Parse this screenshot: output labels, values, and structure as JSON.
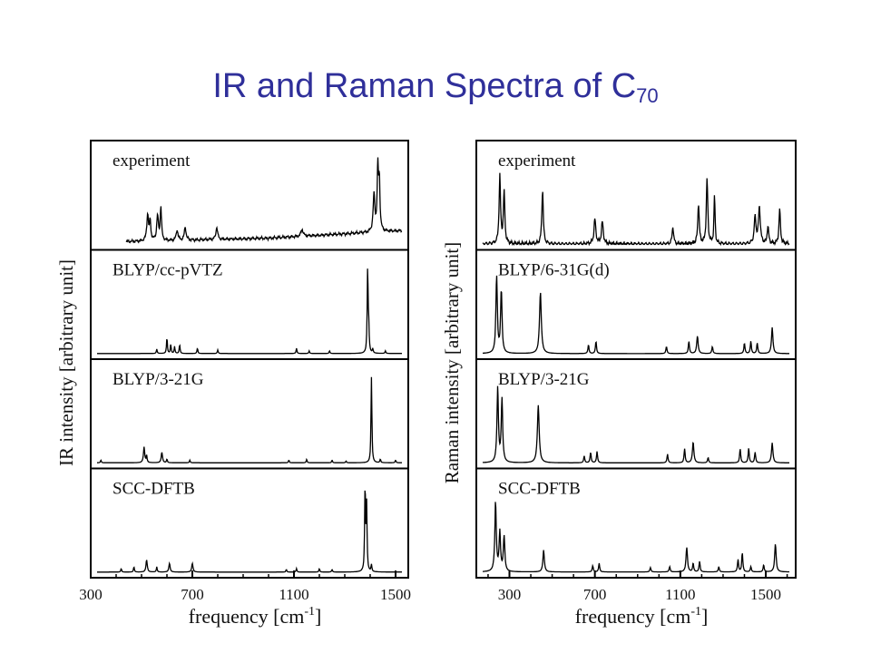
{
  "slide": {
    "title": "IR and Raman Spectra of C",
    "title_subscript": "70"
  },
  "chart_data": [
    {
      "type": "line",
      "ylabel": "IR intensity [arbitrary unit]",
      "xlabel": "frequency [cm",
      "xlabel_sup": "-1",
      "xlabel_close": "]",
      "xlim": [
        300,
        1550
      ],
      "xticks": [
        300,
        700,
        1100,
        1500
      ],
      "tick_labels": [
        "300",
        "700",
        "1100",
        "1500"
      ],
      "panels": [
        {
          "label": "experiment",
          "baseline": 0.18,
          "drift": [
            [
              300,
              0.0
            ],
            [
              1000,
              0.05
            ],
            [
              1550,
              0.14
            ]
          ],
          "noise": 0.02,
          "start": 440,
          "peaks": [
            [
              524,
              0.3,
              4
            ],
            [
              534,
              0.22,
              3
            ],
            [
              563,
              0.28,
              4
            ],
            [
              576,
              0.38,
              3
            ],
            [
              640,
              0.12,
              4
            ],
            [
              672,
              0.15,
              4
            ],
            [
              796,
              0.14,
              4
            ],
            [
              1132,
              0.08,
              5
            ],
            [
              1415,
              0.42,
              4
            ],
            [
              1430,
              0.7,
              3
            ],
            [
              1436,
              0.55,
              3
            ]
          ]
        },
        {
          "label": "BLYP/cc-pVTZ",
          "baseline": 0.02,
          "peaks": [
            [
              560,
              0.05,
              2
            ],
            [
              600,
              0.18,
              2
            ],
            [
              615,
              0.1,
              2
            ],
            [
              630,
              0.08,
              2
            ],
            [
              650,
              0.1,
              2
            ],
            [
              720,
              0.06,
              2
            ],
            [
              800,
              0.04,
              2
            ],
            [
              1110,
              0.06,
              2
            ],
            [
              1160,
              0.03,
              2
            ],
            [
              1240,
              0.03,
              2
            ],
            [
              1390,
              0.96,
              2
            ],
            [
              1394,
              0.3,
              2
            ],
            [
              1410,
              0.05,
              2
            ],
            [
              1460,
              0.03,
              2
            ]
          ]
        },
        {
          "label": "BLYP/3-21G",
          "baseline": 0.02,
          "peaks": [
            [
              340,
              0.03,
              2
            ],
            [
              510,
              0.18,
              3
            ],
            [
              520,
              0.08,
              2
            ],
            [
              580,
              0.12,
              3
            ],
            [
              600,
              0.04,
              2
            ],
            [
              690,
              0.03,
              2
            ],
            [
              1080,
              0.03,
              2
            ],
            [
              1150,
              0.04,
              2
            ],
            [
              1250,
              0.03,
              2
            ],
            [
              1305,
              0.02,
              2
            ],
            [
              1405,
              0.98,
              2
            ],
            [
              1440,
              0.04,
              2
            ],
            [
              1500,
              0.03,
              2
            ]
          ]
        },
        {
          "label": "SCC-DFTB",
          "baseline": 0.02,
          "peaks": [
            [
              420,
              0.04,
              2
            ],
            [
              470,
              0.06,
              2
            ],
            [
              520,
              0.14,
              3
            ],
            [
              560,
              0.06,
              2
            ],
            [
              610,
              0.1,
              3
            ],
            [
              700,
              0.1,
              3
            ],
            [
              1070,
              0.03,
              2
            ],
            [
              1110,
              0.04,
              2
            ],
            [
              1200,
              0.04,
              2
            ],
            [
              1250,
              0.03,
              2
            ],
            [
              1380,
              0.98,
              2
            ],
            [
              1386,
              0.75,
              2
            ],
            [
              1405,
              0.08,
              2
            ]
          ]
        }
      ]
    },
    {
      "type": "line",
      "ylabel": "Raman intensity [arbitrary unit]",
      "xlabel": "frequency [cm",
      "xlabel_sup": "-1",
      "xlabel_close": "]",
      "xlim": [
        145,
        1640
      ],
      "xticks": [
        300,
        700,
        1100,
        1500
      ],
      "tick_labels": [
        "300",
        "700",
        "1100",
        "1500"
      ],
      "panels": [
        {
          "label": "experiment",
          "baseline": 0.05,
          "noise": 0.025,
          "peaks": [
            [
              255,
              0.78,
              4
            ],
            [
              275,
              0.58,
              4
            ],
            [
              455,
              0.62,
              4
            ],
            [
              700,
              0.28,
              5
            ],
            [
              735,
              0.25,
              5
            ],
            [
              1065,
              0.2,
              4
            ],
            [
              1185,
              0.46,
              4
            ],
            [
              1225,
              0.74,
              4
            ],
            [
              1260,
              0.55,
              3
            ],
            [
              1450,
              0.3,
              5
            ],
            [
              1470,
              0.42,
              5
            ],
            [
              1510,
              0.2,
              4
            ],
            [
              1565,
              0.4,
              4
            ]
          ]
        },
        {
          "label": "BLYP/6-31G(d)",
          "baseline": 0.01,
          "peaks": [
            [
              240,
              0.88,
              4
            ],
            [
              262,
              0.72,
              4
            ],
            [
              445,
              0.7,
              5
            ],
            [
              670,
              0.1,
              3
            ],
            [
              705,
              0.14,
              3
            ],
            [
              1035,
              0.08,
              3
            ],
            [
              1140,
              0.14,
              3
            ],
            [
              1180,
              0.2,
              4
            ],
            [
              1250,
              0.08,
              3
            ],
            [
              1400,
              0.12,
              3
            ],
            [
              1430,
              0.14,
              3
            ],
            [
              1460,
              0.12,
              3
            ],
            [
              1530,
              0.3,
              4
            ]
          ]
        },
        {
          "label": "BLYP/3-21G",
          "baseline": 0.01,
          "peaks": [
            [
              245,
              0.86,
              4
            ],
            [
              265,
              0.72,
              4
            ],
            [
              435,
              0.66,
              5
            ],
            [
              650,
              0.08,
              3
            ],
            [
              680,
              0.12,
              3
            ],
            [
              710,
              0.13,
              3
            ],
            [
              1040,
              0.1,
              3
            ],
            [
              1120,
              0.16,
              3
            ],
            [
              1160,
              0.24,
              4
            ],
            [
              1230,
              0.06,
              3
            ],
            [
              1380,
              0.16,
              3
            ],
            [
              1420,
              0.17,
              3
            ],
            [
              1450,
              0.12,
              3
            ],
            [
              1530,
              0.23,
              4
            ]
          ]
        },
        {
          "label": "SCC-DFTB",
          "baseline": 0.03,
          "peaks": [
            [
              235,
              0.8,
              4
            ],
            [
              255,
              0.45,
              4
            ],
            [
              275,
              0.4,
              4
            ],
            [
              460,
              0.25,
              4
            ],
            [
              690,
              0.07,
              3
            ],
            [
              720,
              0.1,
              3
            ],
            [
              960,
              0.05,
              3
            ],
            [
              1050,
              0.06,
              3
            ],
            [
              1130,
              0.28,
              4
            ],
            [
              1160,
              0.1,
              3
            ],
            [
              1190,
              0.12,
              3
            ],
            [
              1280,
              0.06,
              3
            ],
            [
              1370,
              0.14,
              3
            ],
            [
              1390,
              0.22,
              3
            ],
            [
              1430,
              0.06,
              3
            ],
            [
              1490,
              0.08,
              3
            ],
            [
              1545,
              0.32,
              4
            ]
          ]
        }
      ]
    }
  ]
}
